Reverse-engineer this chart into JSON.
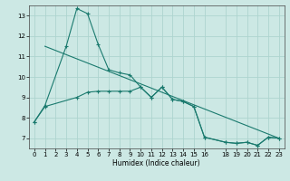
{
  "xlabel": "Humidex (Indice chaleur)",
  "line_color": "#1a7a6e",
  "bg_color": "#cce8e4",
  "grid_color": "#aed4cf",
  "line1_x": [
    0,
    1,
    3,
    4,
    5,
    6,
    7,
    8,
    9,
    10,
    11,
    12,
    13,
    14,
    15,
    16,
    18,
    19,
    20,
    21,
    22,
    23
  ],
  "line1_y": [
    7.8,
    8.6,
    11.5,
    13.35,
    13.1,
    11.6,
    10.35,
    10.2,
    10.1,
    9.5,
    9.0,
    9.5,
    8.9,
    8.8,
    8.55,
    7.05,
    6.8,
    6.75,
    6.8,
    6.65,
    7.05,
    7.0
  ],
  "line2_x": [
    0,
    1,
    4,
    5,
    6,
    7,
    8,
    9,
    10,
    11,
    12,
    13,
    14,
    15,
    16,
    18,
    19,
    20,
    21,
    22,
    23
  ],
  "line2_y": [
    7.8,
    8.55,
    9.0,
    9.25,
    9.3,
    9.3,
    9.3,
    9.3,
    9.5,
    9.0,
    9.5,
    8.9,
    8.8,
    8.55,
    7.05,
    6.8,
    6.75,
    6.8,
    6.65,
    7.05,
    7.0
  ],
  "line3_x": [
    1,
    23
  ],
  "line3_y": [
    11.5,
    7.0
  ],
  "xlim": [
    -0.5,
    23.5
  ],
  "ylim": [
    6.5,
    13.5
  ],
  "yticks": [
    7,
    8,
    9,
    10,
    11,
    12,
    13
  ],
  "xticks": [
    0,
    1,
    2,
    3,
    4,
    5,
    6,
    7,
    8,
    9,
    10,
    11,
    12,
    13,
    14,
    15,
    16,
    18,
    19,
    20,
    21,
    22,
    23
  ]
}
